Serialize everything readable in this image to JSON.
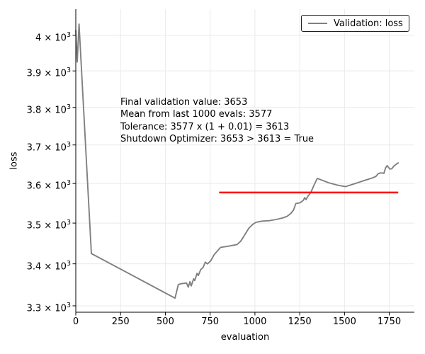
{
  "figure": {
    "background": "#ffffff",
    "text_color": "#000000",
    "grid_color": "#eaeaea",
    "spine_color": "#000000"
  },
  "chart_data": {
    "type": "line",
    "title": "",
    "xlabel": "evaluation",
    "ylabel": "loss",
    "yscale": "log",
    "xlim": [
      0,
      1890
    ],
    "ylim": [
      3285,
      4075
    ],
    "grid": true,
    "x_ticks": [
      0,
      250,
      500,
      750,
      1000,
      1250,
      1500,
      1750
    ],
    "y_ticks": [
      {
        "value": 3300,
        "base": "3.3 × 10",
        "exp": "3"
      },
      {
        "value": 3400,
        "base": "3.4 × 10",
        "exp": "3"
      },
      {
        "value": 3500,
        "base": "3.5 × 10",
        "exp": "3"
      },
      {
        "value": 3600,
        "base": "3.6 × 10",
        "exp": "3"
      },
      {
        "value": 3700,
        "base": "3.7 × 10",
        "exp": "3"
      },
      {
        "value": 3800,
        "base": "3.8 × 10",
        "exp": "3"
      },
      {
        "value": 3900,
        "base": "3.9 × 10",
        "exp": "3"
      },
      {
        "value": 4000,
        "base": "4 × 10",
        "exp": "3"
      }
    ],
    "legend": {
      "label": "Validation: loss",
      "position": "upper right",
      "line_color": "#808080"
    },
    "series": [
      {
        "name": "Validation: loss",
        "color": "#808080",
        "points": [
          [
            0,
            4014
          ],
          [
            8,
            3925
          ],
          [
            18,
            4032
          ],
          [
            87,
            3425
          ],
          [
            554,
            3318
          ],
          [
            572,
            3350
          ],
          [
            584,
            3352
          ],
          [
            618,
            3354
          ],
          [
            628,
            3344
          ],
          [
            637,
            3357
          ],
          [
            644,
            3347
          ],
          [
            658,
            3364
          ],
          [
            664,
            3360
          ],
          [
            677,
            3377
          ],
          [
            684,
            3372
          ],
          [
            697,
            3386
          ],
          [
            710,
            3391
          ],
          [
            723,
            3404
          ],
          [
            735,
            3400
          ],
          [
            753,
            3407
          ],
          [
            772,
            3422
          ],
          [
            808,
            3440
          ],
          [
            852,
            3443
          ],
          [
            900,
            3447
          ],
          [
            920,
            3455
          ],
          [
            945,
            3472
          ],
          [
            965,
            3487
          ],
          [
            988,
            3497
          ],
          [
            1006,
            3502
          ],
          [
            1040,
            3505
          ],
          [
            1080,
            3506
          ],
          [
            1118,
            3509
          ],
          [
            1157,
            3513
          ],
          [
            1180,
            3517
          ],
          [
            1200,
            3524
          ],
          [
            1216,
            3533
          ],
          [
            1228,
            3549
          ],
          [
            1252,
            3551
          ],
          [
            1270,
            3557
          ],
          [
            1278,
            3564
          ],
          [
            1285,
            3559
          ],
          [
            1295,
            3567
          ],
          [
            1312,
            3577
          ],
          [
            1330,
            3596
          ],
          [
            1348,
            3613
          ],
          [
            1360,
            3611
          ],
          [
            1410,
            3602
          ],
          [
            1460,
            3596
          ],
          [
            1505,
            3592
          ],
          [
            1540,
            3597
          ],
          [
            1580,
            3603
          ],
          [
            1620,
            3609
          ],
          [
            1655,
            3614
          ],
          [
            1675,
            3618
          ],
          [
            1688,
            3625
          ],
          [
            1700,
            3627
          ],
          [
            1712,
            3627
          ],
          [
            1720,
            3626
          ],
          [
            1730,
            3641
          ],
          [
            1738,
            3646
          ],
          [
            1746,
            3641
          ],
          [
            1754,
            3637
          ],
          [
            1764,
            3638
          ],
          [
            1776,
            3645
          ],
          [
            1790,
            3650
          ],
          [
            1800,
            3653
          ]
        ]
      }
    ],
    "ref_line": {
      "y": 3577,
      "x_start": 800,
      "x_end": 1800,
      "color": "#ff0000"
    },
    "annotation": {
      "lines": [
        "Final validation value: 3653",
        "Mean from last 1000 evals: 3577",
        "Tolerance: 3577 x (1 + 0.01) = 3613",
        "Shutdown Optimizer: 3653 > 3613 = True"
      ]
    }
  }
}
